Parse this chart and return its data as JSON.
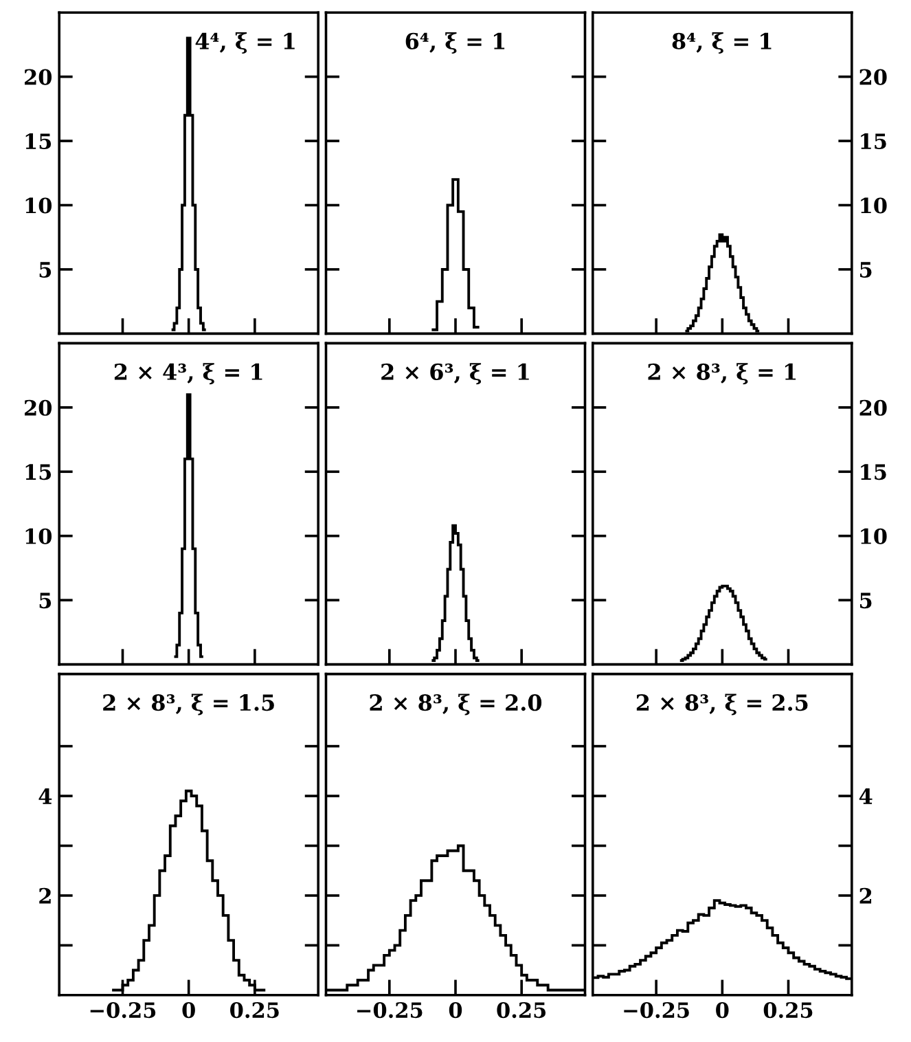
{
  "chart_data": [
    {
      "type": "histogram",
      "title": "4⁴, ξ = 1",
      "color": "#000000",
      "xlim": [
        -0.49,
        0.49
      ],
      "ylim": [
        0,
        25
      ],
      "xticks": [
        {
          "value": -0.25,
          "label": null
        },
        {
          "value": 0,
          "label": null
        },
        {
          "value": 0.25,
          "label": null
        }
      ],
      "yticks": [
        5,
        10,
        15,
        20
      ],
      "tick_labels": "y",
      "bins": [
        -0.065,
        -0.055,
        -0.045,
        -0.035,
        -0.025,
        -0.015,
        -0.005,
        0.005,
        0.015,
        0.025,
        0.035,
        0.045,
        0.055,
        0.065
      ],
      "values": [
        0.3,
        0.8,
        2,
        5,
        10,
        17,
        23,
        17,
        10,
        5,
        2,
        0.8,
        0.3
      ]
    },
    {
      "type": "histogram",
      "title": "6⁴, ξ = 1",
      "color": "#000000",
      "xlim": [
        -0.49,
        0.49
      ],
      "ylim": [
        0,
        25
      ],
      "xticks": [
        {
          "value": -0.25,
          "label": null
        },
        {
          "value": 0,
          "label": null
        },
        {
          "value": 0.25,
          "label": null
        }
      ],
      "yticks": [
        5,
        10,
        15,
        20
      ],
      "tick_labels": false,
      "bins": [
        -0.09,
        -0.07,
        -0.05,
        -0.03,
        -0.01,
        0.01,
        0.03,
        0.05,
        0.07,
        0.09
      ],
      "values": [
        0.3,
        2.5,
        5,
        10,
        12,
        9.5,
        5,
        2,
        0.5
      ]
    },
    {
      "type": "histogram",
      "title": "8⁴, ξ = 1",
      "color": "#000000",
      "xlim": [
        -0.49,
        0.49
      ],
      "ylim": [
        0,
        25
      ],
      "xticks": [
        {
          "value": -0.25,
          "label": null
        },
        {
          "value": 0,
          "label": null
        },
        {
          "value": 0.25,
          "label": null
        }
      ],
      "yticks": [
        5,
        10,
        15,
        20
      ],
      "tick_labels": "y",
      "bins": [
        -0.14,
        -0.13,
        -0.12,
        -0.11,
        -0.1,
        -0.09,
        -0.08,
        -0.07,
        -0.06,
        -0.05,
        -0.04,
        -0.03,
        -0.02,
        -0.01,
        0,
        0.01,
        0.02,
        0.03,
        0.04,
        0.05,
        0.06,
        0.07,
        0.08,
        0.09,
        0.1,
        0.11,
        0.12,
        0.13,
        0.14
      ],
      "values": [
        0.2,
        0.4,
        0.6,
        1,
        1.4,
        2,
        2.7,
        3.5,
        4.3,
        5.2,
        6,
        6.8,
        7.2,
        7.7,
        7.2,
        7.5,
        6.8,
        6,
        5.2,
        4.4,
        3.6,
        2.8,
        2,
        1.5,
        1,
        0.7,
        0.4,
        0.2
      ]
    },
    {
      "type": "histogram",
      "title": "2 × 4³, ξ = 1",
      "color": "#000000",
      "xlim": [
        -0.49,
        0.49
      ],
      "ylim": [
        0,
        25
      ],
      "xticks": [
        {
          "value": -0.25,
          "label": null
        },
        {
          "value": 0,
          "label": null
        },
        {
          "value": 0.25,
          "label": null
        }
      ],
      "yticks": [
        5,
        10,
        15,
        20
      ],
      "tick_labels": "y",
      "bins": [
        -0.055,
        -0.045,
        -0.035,
        -0.025,
        -0.015,
        -0.005,
        0.005,
        0.015,
        0.025,
        0.035,
        0.045,
        0.055
      ],
      "values": [
        0.6,
        1.5,
        4,
        9,
        16,
        21,
        16,
        9,
        4,
        1.5,
        0.6
      ]
    },
    {
      "type": "histogram",
      "title": "2 × 6³, ξ = 1",
      "color": "#000000",
      "xlim": [
        -0.49,
        0.49
      ],
      "ylim": [
        0,
        25
      ],
      "xticks": [
        {
          "value": -0.25,
          "label": null
        },
        {
          "value": 0,
          "label": null
        },
        {
          "value": 0.25,
          "label": null
        }
      ],
      "yticks": [
        5,
        10,
        15,
        20
      ],
      "tick_labels": false,
      "bins": [
        -0.09,
        -0.08,
        -0.07,
        -0.06,
        -0.05,
        -0.04,
        -0.03,
        -0.02,
        -0.01,
        0,
        0.01,
        0.02,
        0.03,
        0.04,
        0.05,
        0.06,
        0.07,
        0.08,
        0.09
      ],
      "values": [
        0.3,
        0.5,
        1.1,
        2,
        3.4,
        5.3,
        7.4,
        9.5,
        10.8,
        10.2,
        9.3,
        7.4,
        5.3,
        3.4,
        2,
        1.1,
        0.5,
        0.3
      ]
    },
    {
      "type": "histogram",
      "title": "2 × 8³, ξ = 1",
      "color": "#000000",
      "xlim": [
        -0.49,
        0.49
      ],
      "ylim": [
        0,
        25
      ],
      "xticks": [
        {
          "value": -0.25,
          "label": null
        },
        {
          "value": 0,
          "label": null
        },
        {
          "value": 0.25,
          "label": null
        }
      ],
      "yticks": [
        5,
        10,
        15,
        20
      ],
      "tick_labels": "y",
      "bins": [
        -0.16,
        -0.15,
        -0.14,
        -0.13,
        -0.12,
        -0.11,
        -0.1,
        -0.09,
        -0.08,
        -0.07,
        -0.06,
        -0.05,
        -0.04,
        -0.03,
        -0.02,
        -0.01,
        0,
        0.01,
        0.02,
        0.03,
        0.04,
        0.05,
        0.06,
        0.07,
        0.08,
        0.09,
        0.1,
        0.11,
        0.12,
        0.13,
        0.14,
        0.15,
        0.16,
        0.17
      ],
      "values": [
        0.3,
        0.4,
        0.5,
        0.7,
        0.9,
        1.2,
        1.6,
        2,
        2.6,
        3.1,
        3.7,
        4.2,
        4.8,
        5.3,
        5.7,
        6,
        6.1,
        6.1,
        5.9,
        5.7,
        5.3,
        4.8,
        4.2,
        3.7,
        3.1,
        2.6,
        2,
        1.6,
        1.2,
        0.9,
        0.7,
        0.5,
        0.4
      ]
    },
    {
      "type": "histogram",
      "title": "2 × 8³, ξ = 1.5",
      "color": "#000000",
      "xlim": [
        -0.49,
        0.49
      ],
      "ylim": [
        0,
        6.45
      ],
      "xticks": [
        {
          "value": -0.25,
          "label": "−0.25"
        },
        0,
        0.25
      ],
      "yticks": [
        {
          "value": 1,
          "label": null
        },
        2,
        {
          "value": 3,
          "label": null
        },
        4,
        {
          "value": 5,
          "label": null
        }
      ],
      "bins": [
        -0.29,
        -0.27,
        -0.25,
        -0.23,
        -0.21,
        -0.19,
        -0.17,
        -0.15,
        -0.13,
        -0.11,
        -0.09,
        -0.07,
        -0.05,
        -0.03,
        -0.01,
        0.01,
        0.03,
        0.05,
        0.07,
        0.09,
        0.11,
        0.13,
        0.15,
        0.17,
        0.19,
        0.21,
        0.23,
        0.25,
        0.27,
        0.29
      ],
      "values": [
        0.1,
        0.1,
        0.2,
        0.3,
        0.5,
        0.7,
        1.1,
        1.4,
        2,
        2.5,
        2.8,
        3.4,
        3.6,
        3.9,
        4.1,
        4,
        3.8,
        3.3,
        2.7,
        2.3,
        2,
        1.6,
        1.1,
        0.7,
        0.4,
        0.3,
        0.2,
        0.1,
        0.1
      ]
    },
    {
      "type": "histogram",
      "title": "2 × 8³, ξ = 2.0",
      "color": "#000000",
      "xlim": [
        -0.49,
        0.49
      ],
      "ylim": [
        0,
        6.45
      ],
      "xticks": [
        {
          "value": -0.25,
          "label": "−0.25"
        },
        0,
        0.25
      ],
      "yticks": [
        {
          "value": 1,
          "label": null
        },
        2,
        {
          "value": 3,
          "label": null
        },
        4,
        {
          "value": 5,
          "label": null
        }
      ],
      "tick_labels": "x",
      "bins": [
        -0.49,
        -0.47,
        -0.45,
        -0.43,
        -0.41,
        -0.39,
        -0.37,
        -0.35,
        -0.33,
        -0.31,
        -0.29,
        -0.27,
        -0.25,
        -0.23,
        -0.21,
        -0.19,
        -0.17,
        -0.15,
        -0.13,
        -0.11,
        -0.09,
        -0.07,
        -0.05,
        -0.03,
        -0.01,
        0.01,
        0.03,
        0.05,
        0.07,
        0.09,
        0.11,
        0.13,
        0.15,
        0.17,
        0.19,
        0.21,
        0.23,
        0.25,
        0.27,
        0.29,
        0.31,
        0.33,
        0.35,
        0.37,
        0.39,
        0.41,
        0.43,
        0.45,
        0.47,
        0.49
      ],
      "values": [
        0.1,
        0.1,
        0.1,
        0.1,
        0.2,
        0.2,
        0.3,
        0.3,
        0.5,
        0.6,
        0.6,
        0.8,
        0.9,
        1,
        1.3,
        1.6,
        1.9,
        2,
        2.3,
        2.3,
        2.7,
        2.8,
        2.8,
        2.9,
        2.9,
        3,
        2.5,
        2.5,
        2.3,
        2,
        1.8,
        1.6,
        1.4,
        1.2,
        1,
        0.8,
        0.6,
        0.4,
        0.3,
        0.3,
        0.2,
        0.2,
        0.1,
        0.1,
        0.1,
        0.1,
        0.1,
        0.1,
        0.1
      ]
    },
    {
      "type": "histogram",
      "title": "2 × 8³, ξ = 2.5",
      "color": "#000000",
      "xlim": [
        -0.49,
        0.49
      ],
      "ylim": [
        0,
        6.45
      ],
      "xticks": [
        {
          "value": -0.25,
          "label": "−0.25"
        },
        0,
        0.25
      ],
      "yticks": [
        {
          "value": 1,
          "label": null
        },
        2,
        {
          "value": 3,
          "label": null
        },
        4,
        {
          "value": 5,
          "label": null
        }
      ],
      "bins": [
        -0.49,
        -0.47,
        -0.45,
        -0.43,
        -0.41,
        -0.39,
        -0.37,
        -0.35,
        -0.33,
        -0.31,
        -0.29,
        -0.27,
        -0.25,
        -0.23,
        -0.21,
        -0.19,
        -0.17,
        -0.15,
        -0.13,
        -0.11,
        -0.09,
        -0.07,
        -0.05,
        -0.03,
        -0.01,
        0.01,
        0.03,
        0.05,
        0.07,
        0.09,
        0.11,
        0.13,
        0.15,
        0.17,
        0.19,
        0.21,
        0.23,
        0.25,
        0.27,
        0.29,
        0.31,
        0.33,
        0.35,
        0.37,
        0.39,
        0.41,
        0.43,
        0.45,
        0.47,
        0.49
      ],
      "values": [
        0.35,
        0.38,
        0.36,
        0.42,
        0.42,
        0.48,
        0.5,
        0.58,
        0.62,
        0.7,
        0.78,
        0.85,
        0.95,
        1.05,
        1.1,
        1.2,
        1.3,
        1.28,
        1.45,
        1.5,
        1.62,
        1.6,
        1.75,
        1.9,
        1.85,
        1.82,
        1.8,
        1.78,
        1.8,
        1.75,
        1.65,
        1.6,
        1.5,
        1.35,
        1.2,
        1.05,
        0.95,
        0.85,
        0.75,
        0.68,
        0.62,
        0.58,
        0.52,
        0.48,
        0.45,
        0.42,
        0.38,
        0.36,
        0.33
      ]
    }
  ]
}
